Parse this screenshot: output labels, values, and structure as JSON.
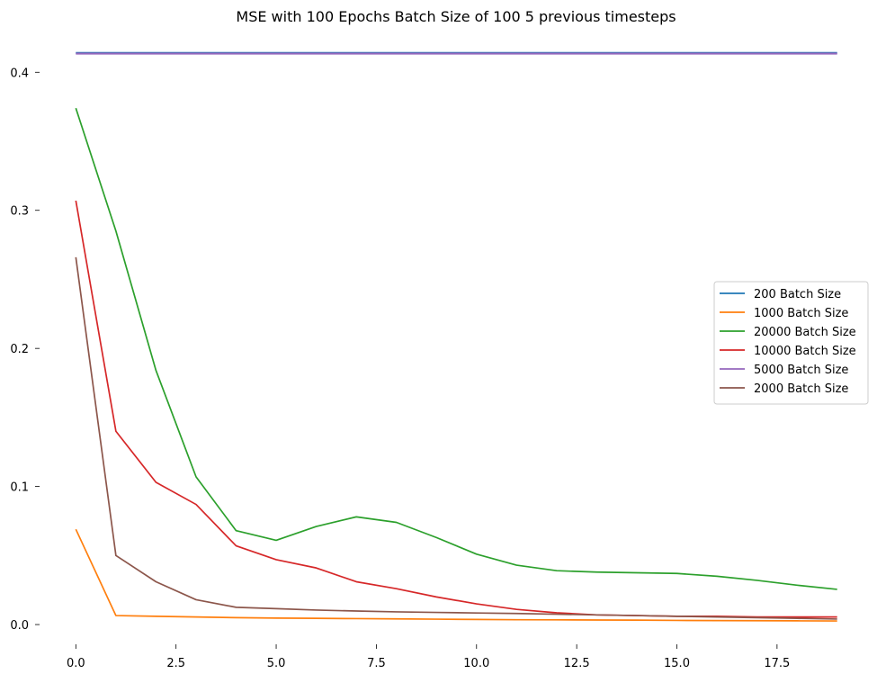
{
  "chart_data": {
    "type": "line",
    "title": "MSE with 100 Epochs Batch Size of 100 5 previous timesteps",
    "xlabel": "",
    "ylabel": "",
    "x": [
      0,
      1,
      2,
      3,
      4,
      5,
      6,
      7,
      8,
      9,
      10,
      11,
      12,
      13,
      14,
      15,
      16,
      17,
      18,
      19
    ],
    "xlim": [
      -0.95,
      19.95
    ],
    "ylim": [
      -0.013,
      0.423
    ],
    "x_ticks": [
      0,
      2.5,
      5,
      7.5,
      10,
      12.5,
      15,
      17.5
    ],
    "x_tick_labels": [
      "0.0",
      "2.5",
      "5.0",
      "7.5",
      "10.0",
      "12.5",
      "15.0",
      "17.5"
    ],
    "y_ticks": [
      0,
      0.1,
      0.2,
      0.3,
      0.4
    ],
    "y_tick_labels": [
      "0.0",
      "0.1",
      "0.2",
      "0.3",
      "0.4"
    ],
    "grid": false,
    "legend_position": "center-right",
    "series": [
      {
        "name": "200 Batch Size",
        "color": "#1f77b4",
        "values": [
          0.414,
          0.414,
          0.414,
          0.414,
          0.414,
          0.414,
          0.414,
          0.414,
          0.414,
          0.414,
          0.414,
          0.414,
          0.414,
          0.414,
          0.414,
          0.414,
          0.414,
          0.414,
          0.414,
          0.414
        ]
      },
      {
        "name": "1000 Batch Size",
        "color": "#ff7f0e",
        "values": [
          0.069,
          0.0065,
          0.006,
          0.0055,
          0.005,
          0.0047,
          0.0045,
          0.0043,
          0.0041,
          0.0039,
          0.0037,
          0.0035,
          0.0034,
          0.0033,
          0.0032,
          0.003,
          0.0029,
          0.0028,
          0.0027,
          0.0026
        ]
      },
      {
        "name": "20000 Batch Size",
        "color": "#2ca02c",
        "values": [
          0.374,
          0.285,
          0.184,
          0.107,
          0.068,
          0.061,
          0.071,
          0.078,
          0.074,
          0.063,
          0.051,
          0.043,
          0.039,
          0.038,
          0.0375,
          0.037,
          0.035,
          0.032,
          0.0285,
          0.0255
        ]
      },
      {
        "name": "10000 Batch Size",
        "color": "#d62728",
        "values": [
          0.307,
          0.14,
          0.103,
          0.087,
          0.057,
          0.047,
          0.041,
          0.031,
          0.026,
          0.02,
          0.015,
          0.011,
          0.0085,
          0.007,
          0.0065,
          0.006,
          0.006,
          0.0055,
          0.0055,
          0.0055
        ]
      },
      {
        "name": "5000 Batch Size",
        "color": "#9467bd",
        "values": [
          0.4135,
          0.4135,
          0.4135,
          0.4135,
          0.4135,
          0.4135,
          0.4135,
          0.4135,
          0.4135,
          0.4135,
          0.4135,
          0.4135,
          0.4135,
          0.4135,
          0.4135,
          0.4135,
          0.4135,
          0.4135,
          0.4135,
          0.4135
        ]
      },
      {
        "name": "2000 Batch Size",
        "color": "#8c564b",
        "values": [
          0.266,
          0.05,
          0.031,
          0.018,
          0.0125,
          0.0115,
          0.0105,
          0.0098,
          0.0092,
          0.0088,
          0.0084,
          0.008,
          0.0075,
          0.007,
          0.0065,
          0.006,
          0.0055,
          0.005,
          0.0045,
          0.004
        ]
      }
    ]
  }
}
